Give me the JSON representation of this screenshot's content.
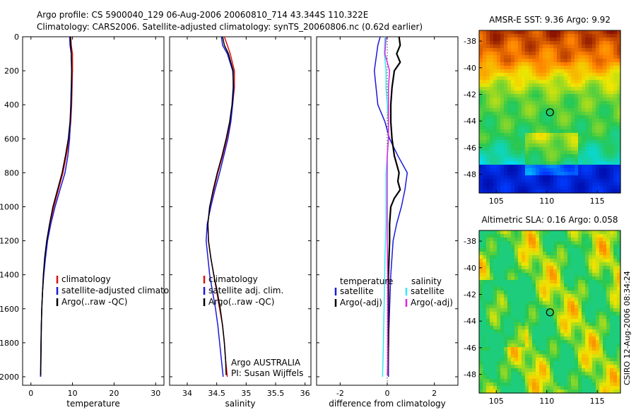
{
  "title": {
    "line1": "Argo profile: CS 5900040_129 06-Aug-2006 20060810_714 43.344S 110.322E",
    "line2": "Climatology: CARS2006. Satellite-adjusted climatology: synTS_20060806.nc (0.62d earlier)"
  },
  "colors": {
    "climatology": "#dd1111",
    "satellite": "#1a1ad8",
    "argo": "#000000",
    "sal_satellite": "#33e8f0",
    "sal_argo": "#e022e0"
  },
  "chart_data": [
    {
      "type": "line",
      "name": "temperature",
      "xlabel": "temperature",
      "ylabel": "",
      "xlim": [
        -2,
        32
      ],
      "ylim": [
        2050,
        0
      ],
      "xticks": [
        0,
        10,
        20,
        30
      ],
      "xtick_labels": [
        "0",
        "10",
        "20",
        "30"
      ],
      "yticks": [
        0,
        200,
        400,
        600,
        800,
        1000,
        1200,
        1400,
        1600,
        1800,
        2000
      ],
      "ytick_labels": [
        "0",
        "200",
        "400",
        "600",
        "800",
        "1000",
        "1200",
        "1400",
        "1600",
        "1800",
        "2000"
      ],
      "legend": {
        "position": "lower-right",
        "entries": [
          "climatology",
          "satellite-adjusted climatology",
          "Argo(..raw -QC)"
        ]
      },
      "series": [
        {
          "name": "climatology",
          "color_key": "climatology",
          "points": [
            [
              9.6,
              0
            ],
            [
              9.7,
              50
            ],
            [
              10.0,
              100
            ],
            [
              10.0,
              200
            ],
            [
              9.9,
              300
            ],
            [
              9.8,
              400
            ],
            [
              9.6,
              500
            ],
            [
              9.2,
              600
            ],
            [
              8.5,
              700
            ],
            [
              7.7,
              800
            ],
            [
              6.6,
              900
            ],
            [
              5.5,
              1000
            ],
            [
              4.6,
              1100
            ],
            [
              3.9,
              1200
            ],
            [
              3.4,
              1300
            ],
            [
              3.0,
              1400
            ],
            [
              2.8,
              1500
            ],
            [
              2.6,
              1600
            ],
            [
              2.5,
              1700
            ],
            [
              2.45,
              1800
            ],
            [
              2.4,
              1900
            ],
            [
              2.35,
              2000
            ]
          ]
        },
        {
          "name": "satellite-adjusted climatology",
          "color_key": "satellite",
          "points": [
            [
              9.3,
              0
            ],
            [
              9.4,
              50
            ],
            [
              9.7,
              100
            ],
            [
              9.8,
              200
            ],
            [
              9.8,
              300
            ],
            [
              9.7,
              400
            ],
            [
              9.5,
              500
            ],
            [
              9.3,
              600
            ],
            [
              8.9,
              700
            ],
            [
              8.2,
              800
            ],
            [
              7.0,
              900
            ],
            [
              5.8,
              1000
            ],
            [
              4.8,
              1100
            ],
            [
              4.0,
              1200
            ],
            [
              3.5,
              1300
            ],
            [
              3.1,
              1400
            ],
            [
              2.8,
              1500
            ],
            [
              2.6,
              1600
            ],
            [
              2.5,
              1700
            ],
            [
              2.4,
              1800
            ],
            [
              2.35,
              1900
            ],
            [
              2.3,
              2000
            ]
          ]
        },
        {
          "name": "Argo(..raw -QC)",
          "color_key": "argo",
          "points": [
            [
              9.5,
              0
            ],
            [
              9.6,
              50
            ],
            [
              9.7,
              100
            ],
            [
              9.8,
              200
            ],
            [
              9.7,
              300
            ],
            [
              9.6,
              400
            ],
            [
              9.4,
              500
            ],
            [
              9.0,
              600
            ],
            [
              8.3,
              700
            ],
            [
              7.5,
              800
            ],
            [
              6.4,
              900
            ],
            [
              5.3,
              1000
            ],
            [
              4.5,
              1100
            ],
            [
              3.8,
              1200
            ],
            [
              3.3,
              1300
            ],
            [
              3.0,
              1400
            ],
            [
              2.8,
              1500
            ],
            [
              2.6,
              1600
            ],
            [
              2.5,
              1700
            ],
            [
              2.45,
              1800
            ],
            [
              2.4,
              1900
            ],
            [
              2.35,
              1990
            ]
          ]
        }
      ]
    },
    {
      "type": "line",
      "name": "salinity",
      "xlabel": "salinity",
      "ylabel": "",
      "xlim": [
        33.7,
        36.1
      ],
      "ylim": [
        2050,
        0
      ],
      "xticks": [
        34,
        34.5,
        35,
        35.5,
        36
      ],
      "xtick_labels": [
        "34",
        "34.5",
        "35",
        "35.5",
        "36"
      ],
      "legend": {
        "position": "lower-right",
        "entries": [
          "climatology",
          "satellite adj. clim.",
          "Argo(..raw -QC)"
        ]
      },
      "annotation": {
        "line1": "Argo AUSTRALIA",
        "line2": "PI: Susan Wijffels"
      },
      "series": [
        {
          "name": "climatology",
          "color_key": "climatology",
          "points": [
            [
              34.63,
              0
            ],
            [
              34.68,
              50
            ],
            [
              34.73,
              100
            ],
            [
              34.8,
              200
            ],
            [
              34.8,
              300
            ],
            [
              34.77,
              400
            ],
            [
              34.73,
              500
            ],
            [
              34.67,
              600
            ],
            [
              34.6,
              700
            ],
            [
              34.52,
              800
            ],
            [
              34.45,
              900
            ],
            [
              34.38,
              1000
            ],
            [
              34.35,
              1100
            ],
            [
              34.36,
              1200
            ],
            [
              34.4,
              1300
            ],
            [
              34.45,
              1400
            ],
            [
              34.5,
              1500
            ],
            [
              34.55,
              1600
            ],
            [
              34.6,
              1700
            ],
            [
              34.63,
              1800
            ],
            [
              34.65,
              1900
            ],
            [
              34.68,
              2000
            ]
          ]
        },
        {
          "name": "satellite adj. clim.",
          "color_key": "satellite",
          "points": [
            [
              34.58,
              0
            ],
            [
              34.6,
              50
            ],
            [
              34.68,
              100
            ],
            [
              34.77,
              200
            ],
            [
              34.79,
              300
            ],
            [
              34.77,
              400
            ],
            [
              34.74,
              500
            ],
            [
              34.69,
              600
            ],
            [
              34.62,
              700
            ],
            [
              34.55,
              800
            ],
            [
              34.47,
              900
            ],
            [
              34.4,
              1000
            ],
            [
              34.34,
              1100
            ],
            [
              34.32,
              1200
            ],
            [
              34.35,
              1300
            ],
            [
              34.38,
              1400
            ],
            [
              34.43,
              1500
            ],
            [
              34.48,
              1600
            ],
            [
              34.52,
              1700
            ],
            [
              34.55,
              1800
            ],
            [
              34.58,
              1900
            ],
            [
              34.61,
              2000
            ]
          ]
        },
        {
          "name": "Argo(..raw -QC)",
          "color_key": "argo",
          "points": [
            [
              34.6,
              0
            ],
            [
              34.63,
              50
            ],
            [
              34.7,
              100
            ],
            [
              34.78,
              200
            ],
            [
              34.78,
              300
            ],
            [
              34.76,
              400
            ],
            [
              34.72,
              500
            ],
            [
              34.66,
              600
            ],
            [
              34.59,
              700
            ],
            [
              34.51,
              800
            ],
            [
              34.44,
              900
            ],
            [
              34.38,
              1000
            ],
            [
              34.35,
              1100
            ],
            [
              34.36,
              1200
            ],
            [
              34.4,
              1300
            ],
            [
              34.45,
              1400
            ],
            [
              34.51,
              1500
            ],
            [
              34.56,
              1600
            ],
            [
              34.6,
              1700
            ],
            [
              34.63,
              1800
            ],
            [
              34.65,
              1900
            ],
            [
              34.66,
              1990
            ]
          ]
        }
      ]
    },
    {
      "type": "line",
      "name": "difference from climatology",
      "xlabel": "difference from climatology",
      "ylabel": "",
      "xlim": [
        -3,
        3
      ],
      "ylim": [
        2050,
        0
      ],
      "xticks": [
        -2,
        0,
        2
      ],
      "xtick_labels": [
        "-2",
        "0",
        "2"
      ],
      "legend": {
        "position": "lower-right",
        "temperature_heading": "temperature",
        "salinity_heading": "salinity",
        "temperature_entries": [
          "satellite",
          "Argo(-adj)"
        ],
        "salinity_entries": [
          "satellite",
          "Argo(-adj)"
        ]
      },
      "series": [
        {
          "name": "temperature satellite",
          "color_key": "satellite",
          "points": [
            [
              -0.3,
              0
            ],
            [
              -0.4,
              50
            ],
            [
              -0.55,
              200
            ],
            [
              -0.4,
              400
            ],
            [
              -0.1,
              500
            ],
            [
              0.1,
              600
            ],
            [
              0.45,
              700
            ],
            [
              0.85,
              800
            ],
            [
              0.75,
              900
            ],
            [
              0.6,
              1000
            ],
            [
              0.4,
              1100
            ],
            [
              0.25,
              1200
            ],
            [
              0.15,
              1400
            ],
            [
              0.1,
              1600
            ],
            [
              0.05,
              1800
            ],
            [
              0.05,
              2000
            ]
          ]
        },
        {
          "name": "temperature Argo(-adj)",
          "color_key": "argo",
          "points": [
            [
              0.5,
              0
            ],
            [
              0.55,
              50
            ],
            [
              0.4,
              100
            ],
            [
              0.55,
              150
            ],
            [
              0.3,
              200
            ],
            [
              0.2,
              300
            ],
            [
              0.15,
              400
            ],
            [
              0.15,
              500
            ],
            [
              0.2,
              600
            ],
            [
              0.3,
              700
            ],
            [
              0.5,
              800
            ],
            [
              0.45,
              850
            ],
            [
              0.55,
              900
            ],
            [
              0.3,
              950
            ],
            [
              0.15,
              1000
            ],
            [
              0.1,
              1100
            ],
            [
              0.1,
              1200
            ],
            [
              0.05,
              1400
            ],
            [
              0.05,
              1600
            ],
            [
              0.05,
              1800
            ],
            [
              0.02,
              1990
            ]
          ]
        },
        {
          "name": "salinity satellite",
          "color_key": "sal_satellite",
          "points": [
            [
              -0.1,
              0
            ],
            [
              -0.12,
              100
            ],
            [
              -0.05,
              200
            ],
            [
              -0.05,
              300
            ],
            [
              0.0,
              400
            ],
            [
              0.05,
              500
            ],
            [
              0.05,
              600
            ],
            [
              0.0,
              700
            ],
            [
              -0.05,
              800
            ],
            [
              -0.05,
              900
            ],
            [
              -0.05,
              1000
            ],
            [
              -0.05,
              1100
            ],
            [
              -0.1,
              1300
            ],
            [
              -0.12,
              1500
            ],
            [
              -0.15,
              1700
            ],
            [
              -0.18,
              1900
            ],
            [
              -0.2,
              2000
            ]
          ]
        },
        {
          "name": "salinity Argo(-adj)",
          "color_key": "sal_argo",
          "points": [
            [
              -0.05,
              0
            ],
            [
              -0.1,
              100
            ],
            [
              0.1,
              200
            ],
            [
              0.05,
              300
            ],
            [
              0.05,
              400
            ],
            [
              0.05,
              500
            ],
            [
              0.05,
              600
            ],
            [
              0.0,
              700
            ],
            [
              0.0,
              800
            ],
            [
              0.0,
              900
            ],
            [
              0.0,
              1000
            ],
            [
              0.0,
              1200
            ],
            [
              0.02,
              1400
            ],
            [
              0.02,
              1600
            ],
            [
              0.02,
              1800
            ],
            [
              0.02,
              1990
            ]
          ]
        }
      ]
    },
    {
      "type": "heatmap",
      "name": "sst-map",
      "title": "AMSR-E SST: 9.36 Argo: 9.92",
      "xlim": [
        103.3,
        117.3
      ],
      "ylim": [
        -49.4,
        -37.2
      ],
      "xticks": [
        105,
        110,
        115
      ],
      "xtick_labels": [
        "105",
        "110",
        "115"
      ],
      "yticks": [
        -38,
        -40,
        -42,
        -44,
        -46,
        -48
      ],
      "ytick_labels": [
        "-38",
        "-40",
        "-42",
        "-44",
        "-46",
        "-48"
      ],
      "marker": {
        "lon": 110.322,
        "lat": -43.344
      }
    },
    {
      "type": "heatmap",
      "name": "sla-map",
      "title": "Altimetric SLA: 0.16 Argo: 0.058",
      "xlim": [
        103.3,
        117.3
      ],
      "ylim": [
        -49.4,
        -37.2
      ],
      "xticks": [
        105,
        110,
        115
      ],
      "xtick_labels": [
        "105",
        "110",
        "115"
      ],
      "yticks": [
        -38,
        -40,
        -42,
        -44,
        -46,
        -48
      ],
      "ytick_labels": [
        "-38",
        "-40",
        "-42",
        "-44",
        "-46",
        "-48"
      ],
      "marker": {
        "lon": 110.322,
        "lat": -43.344
      }
    }
  ],
  "side_label": "CSIRO 12-Aug-2006 08:34:24"
}
